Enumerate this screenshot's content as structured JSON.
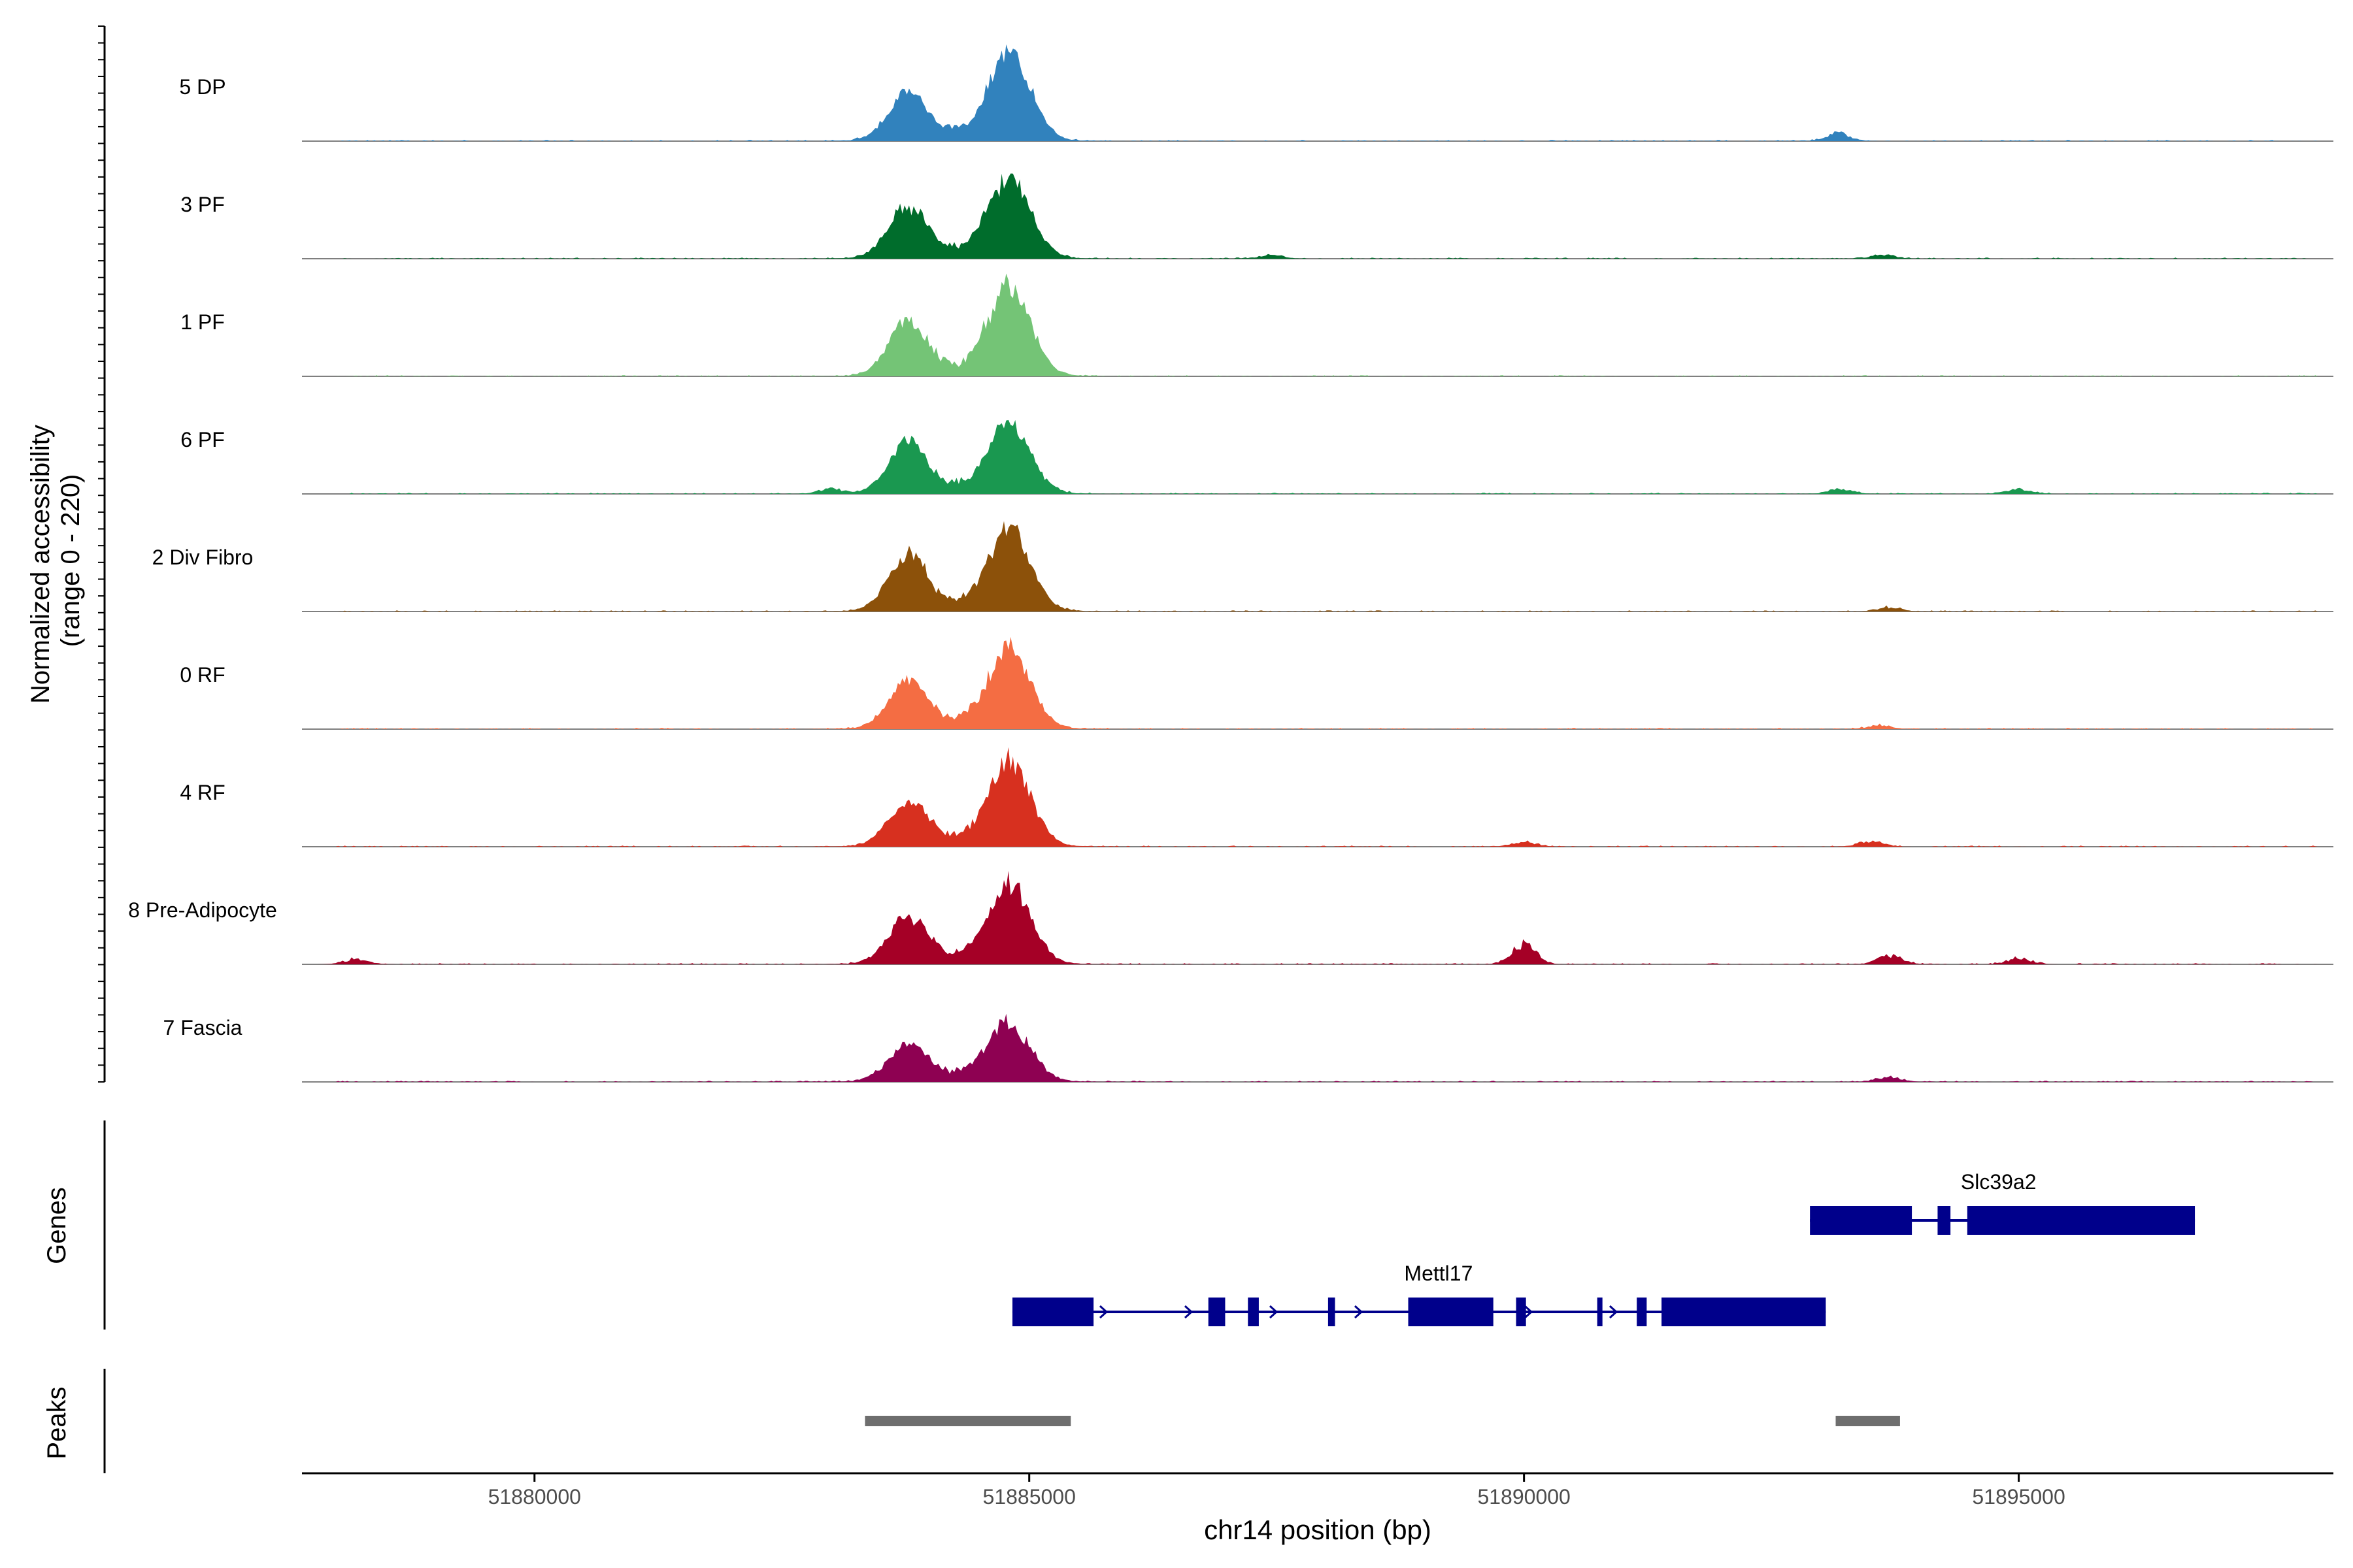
{
  "chart_data": {
    "type": "area",
    "region": "chr14",
    "xlim": [
      51877650,
      51898180
    ],
    "ylabel": "Normalized accessibility\n(range 0 - 220)",
    "y_range": [
      0,
      220
    ],
    "xlabel": "chr14 position (bp)",
    "x_ticks": [
      51880000,
      51885000,
      51890000,
      51895000
    ],
    "x_tick_labels": [
      "51880000",
      "51885000",
      "51890000",
      "51895000"
    ],
    "panels": [
      "Genes",
      "Peaks"
    ],
    "tracks": [
      {
        "name": "5 DP",
        "color": "#3182bd",
        "peak1_height": 0.45,
        "peak2_height": 0.85,
        "bg_peaks": [
          [
            51893180,
            0.08
          ]
        ]
      },
      {
        "name": "3 PF",
        "color": "#006d2c",
        "peak1_height": 0.5,
        "peak2_height": 0.78,
        "bg_peaks": [
          [
            51887440,
            0.04
          ],
          [
            51893620,
            0.04
          ]
        ]
      },
      {
        "name": "1 PF",
        "color": "#74c476",
        "peak1_height": 0.52,
        "peak2_height": 0.88,
        "bg_peaks": []
      },
      {
        "name": "6 PF",
        "color": "#1a9850",
        "peak1_height": 0.48,
        "peak2_height": 0.65,
        "bg_peaks": [
          [
            51883000,
            0.05
          ],
          [
            51893200,
            0.05
          ],
          [
            51895000,
            0.05
          ]
        ]
      },
      {
        "name": "2 Div Fibro",
        "color": "#8c510a",
        "peak1_height": 0.55,
        "peak2_height": 0.8,
        "bg_peaks": [
          [
            51893700,
            0.04
          ]
        ]
      },
      {
        "name": "0 RF",
        "color": "#f46d43",
        "peak1_height": 0.45,
        "peak2_height": 0.78,
        "bg_peaks": [
          [
            51893600,
            0.04
          ]
        ]
      },
      {
        "name": "4 RF",
        "color": "#d7301f",
        "peak1_height": 0.42,
        "peak2_height": 0.82,
        "bg_peaks": [
          [
            51890000,
            0.05
          ],
          [
            51893500,
            0.06
          ]
        ]
      },
      {
        "name": "8 Pre-Adipocyte",
        "color": "#a50026",
        "peak1_height": 0.45,
        "peak2_height": 0.78,
        "bg_peaks": [
          [
            51878200,
            0.05
          ],
          [
            51890000,
            0.2
          ],
          [
            51893700,
            0.09
          ],
          [
            51895000,
            0.06
          ]
        ]
      },
      {
        "name": "7 Fascia",
        "color": "#8e0152",
        "peak1_height": 0.35,
        "peak2_height": 0.55,
        "bg_peaks": [
          [
            51893700,
            0.05
          ]
        ]
      }
    ],
    "peak_centers": [
      51883770,
      51884800
    ],
    "genes": [
      {
        "name": "Slc39a2",
        "start": 51892890,
        "end": 51896780,
        "strand": "+",
        "exons": [
          [
            51892890,
            51893920
          ],
          [
            51894180,
            51894310
          ],
          [
            51894480,
            51896780
          ]
        ]
      },
      {
        "name": "Mettl17",
        "start": 51884830,
        "end": 51893050,
        "strand": "+",
        "exons": [
          [
            51884830,
            51885650
          ],
          [
            51886810,
            51886980
          ],
          [
            51887210,
            51887320
          ],
          [
            51888020,
            51888090
          ],
          [
            51888830,
            51889690
          ],
          [
            51889920,
            51890020
          ],
          [
            51890740,
            51890780
          ],
          [
            51891140,
            51891240
          ],
          [
            51891390,
            51893050
          ]
        ]
      }
    ],
    "peaks": [
      [
        51883340,
        51885420
      ],
      [
        51893150,
        51893800
      ]
    ],
    "grid": false
  }
}
